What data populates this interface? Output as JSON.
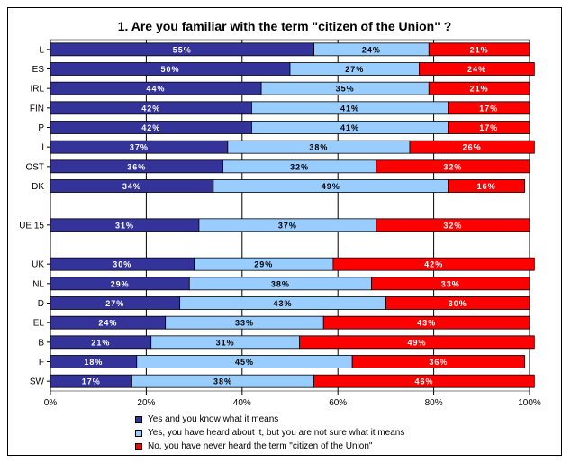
{
  "chart_data": {
    "type": "bar",
    "orientation": "horizontal",
    "stacked": true,
    "title": "1. Are you familiar with the term \"citizen of the Union\" ?",
    "xlim": [
      0,
      100
    ],
    "x_ticks": [
      "0%",
      "20%",
      "40%",
      "60%",
      "80%",
      "100%"
    ],
    "grid": true,
    "legend_position": "bottom",
    "categories": [
      "L",
      "ES",
      "IRL",
      "FIN",
      "P",
      "I",
      "OST",
      "DK",
      "",
      "UE 15",
      "",
      "UK",
      "NL",
      "D",
      "EL",
      "B",
      "F",
      "SW"
    ],
    "series": [
      {
        "name": "Yes and you know what it means",
        "color": "#333399",
        "values": [
          55,
          50,
          44,
          42,
          42,
          37,
          36,
          34,
          null,
          31,
          null,
          30,
          29,
          27,
          24,
          21,
          18,
          17
        ],
        "labels": [
          "55%",
          "50%",
          "44%",
          "42%",
          "42%",
          "37%",
          "36%",
          "34%",
          "",
          "31%",
          "",
          "30%",
          "29%",
          "27%",
          "24%",
          "21%",
          "18%",
          "17%"
        ]
      },
      {
        "name": "Yes, you have heard about it, but you are not sure what it means",
        "color": "#99CCFF",
        "values": [
          24,
          27,
          35,
          41,
          41,
          38,
          32,
          49,
          null,
          37,
          null,
          29,
          38,
          43,
          33,
          31,
          45,
          38
        ],
        "labels": [
          "24%",
          "27%",
          "35%",
          "41%",
          "41%",
          "38%",
          "32%",
          "49%",
          "",
          "37%",
          "",
          "29%",
          "38%",
          "43%",
          "33%",
          "31%",
          "45%",
          "38%"
        ]
      },
      {
        "name": "No, you have never heard the term \"citizen of the Union\"",
        "color": "#FF0000",
        "values": [
          21,
          24,
          21,
          17,
          17,
          26,
          32,
          16,
          null,
          32,
          null,
          42,
          33,
          30,
          43,
          49,
          36,
          46
        ],
        "labels": [
          "21%",
          "24%",
          "21%",
          "17%",
          "17%",
          "26%",
          "32%",
          "16%",
          "",
          "32%",
          "",
          "42%",
          "33%",
          "30%",
          "43%",
          "49%",
          "36%",
          "46%"
        ]
      }
    ]
  }
}
